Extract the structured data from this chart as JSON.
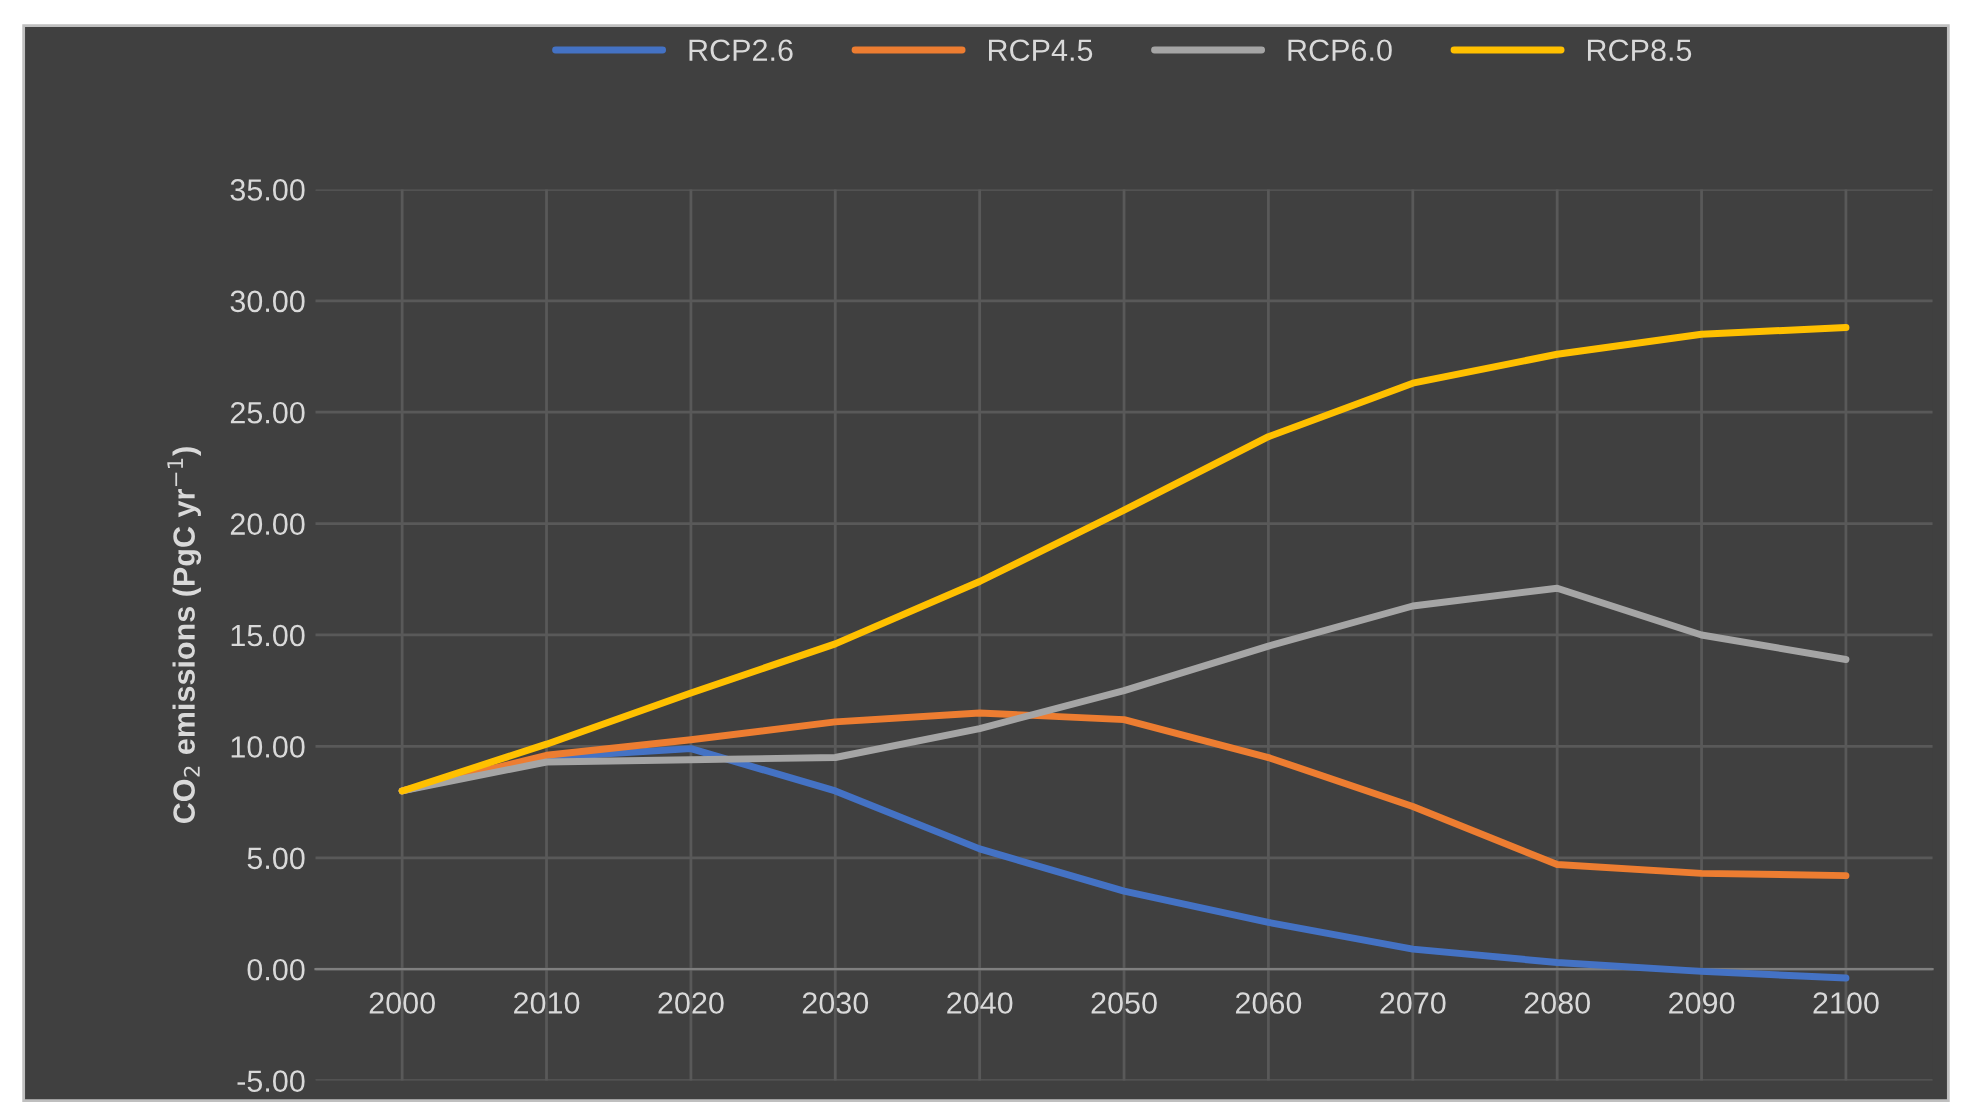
{
  "chart_data": {
    "type": "line",
    "ylabel": "CO$_{2}$ emissions (PgC yr$^{−1}$)",
    "categories": [
      "2000",
      "2010",
      "2020",
      "2030",
      "2040",
      "2050",
      "2060",
      "2070",
      "2080",
      "2090",
      "2100"
    ],
    "series": [
      {
        "name": "RCP2.6",
        "color": "#4472c4",
        "values": [
          8.0,
          9.5,
          9.9,
          8.0,
          5.4,
          3.5,
          2.1,
          0.9,
          0.3,
          -0.1,
          -0.4
        ]
      },
      {
        "name": "RCP4.5",
        "color": "#ed7d31",
        "values": [
          8.0,
          9.6,
          10.3,
          11.1,
          11.5,
          11.2,
          9.5,
          7.3,
          4.7,
          4.3,
          4.2
        ]
      },
      {
        "name": "RCP6.0",
        "color": "#a5a5a5",
        "values": [
          8.0,
          9.3,
          9.4,
          9.5,
          10.8,
          12.5,
          14.5,
          16.3,
          17.1,
          15.0,
          13.9
        ]
      },
      {
        "name": "RCP8.5",
        "color": "#ffc000",
        "values": [
          8.0,
          10.1,
          12.4,
          14.6,
          17.4,
          20.6,
          23.9,
          26.3,
          27.6,
          28.5,
          28.8
        ]
      }
    ],
    "ylim": [
      -5,
      35
    ],
    "yticks": [
      {
        "value": -5,
        "label": "-5.00"
      },
      {
        "value": 0,
        "label": "0.00"
      },
      {
        "value": 5,
        "label": "5.00"
      },
      {
        "value": 10,
        "label": "10.00"
      },
      {
        "value": 15,
        "label": "15.00"
      },
      {
        "value": 20,
        "label": "20.00"
      },
      {
        "value": 25,
        "label": "25.00"
      },
      {
        "value": 30,
        "label": "30.00"
      },
      {
        "value": 35,
        "label": "35.00"
      }
    ],
    "grid": true,
    "legend": "top",
    "marker": "none",
    "line_style": "solid"
  }
}
